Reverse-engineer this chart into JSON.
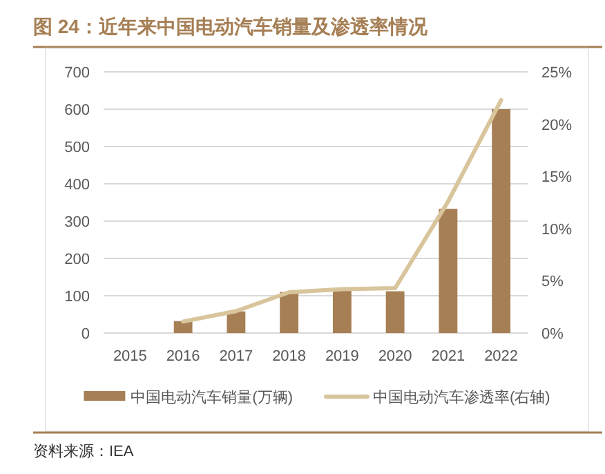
{
  "chart_data": {
    "type": "bar",
    "title": "图 24：近年来中国电动汽车销量及渗透率情况",
    "categories": [
      "2015",
      "2016",
      "2017",
      "2018",
      "2019",
      "2020",
      "2021",
      "2022"
    ],
    "series": [
      {
        "name": "中国电动汽车销量(万辆)",
        "color": "#a67f55",
        "values": [
          null,
          32,
          58,
          110,
          118,
          112,
          333,
          600
        ]
      },
      {
        "name": "中国电动汽车渗透率(右轴)",
        "type": "line",
        "axis": "y2",
        "color": "#d9c59c",
        "marker": "none",
        "values": [
          null,
          1.1,
          2.1,
          3.9,
          4.2,
          4.3,
          12.6,
          22.3
        ]
      }
    ],
    "ylim": [
      0,
      700
    ],
    "yticks": [
      0,
      100,
      200,
      300,
      400,
      500,
      600,
      700
    ],
    "y2lim": [
      0,
      25
    ],
    "y2ticks": [
      {
        "value": 0,
        "label": "0%"
      },
      {
        "value": 5,
        "label": "5%"
      },
      {
        "value": 10,
        "label": "10%"
      },
      {
        "value": 15,
        "label": "15%"
      },
      {
        "value": 20,
        "label": "20%"
      },
      {
        "value": 25,
        "label": "25%"
      }
    ],
    "grid": "y",
    "legend": "bottom",
    "annotations": [
      "资料来源：IEA"
    ]
  }
}
